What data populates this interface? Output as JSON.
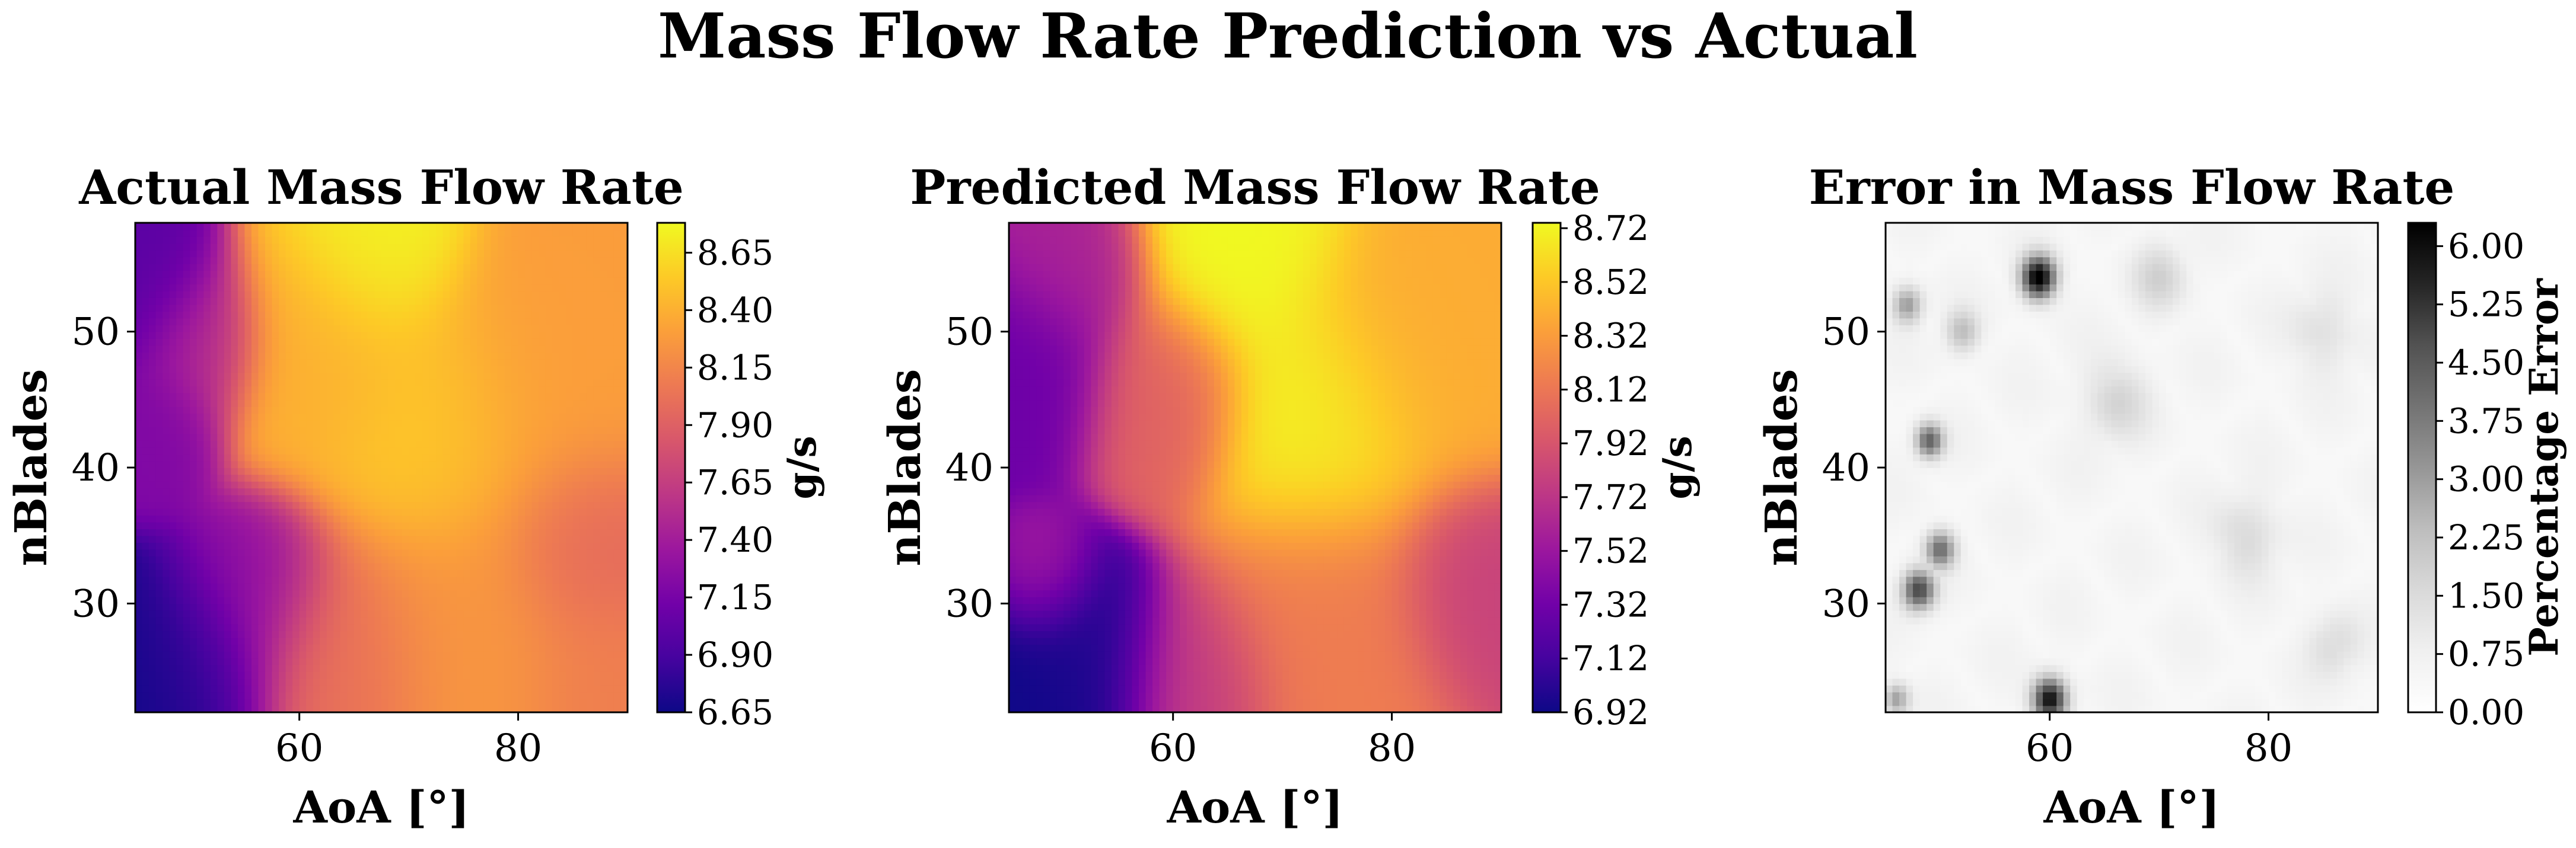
{
  "figure": {
    "title": "Mass Flow Rate Prediction vs Actual"
  },
  "chart_data": [
    {
      "type": "heatmap",
      "title": "Actual Mass Flow Rate",
      "xlabel": "AoA [°]",
      "ylabel": "nBlades",
      "xlim": [
        45,
        90
      ],
      "ylim": [
        22,
        58
      ],
      "xticks": [
        "60",
        "80"
      ],
      "yticks": [
        "30",
        "40",
        "50"
      ],
      "colormap": "plasma",
      "colorbar": {
        "label": "g/s",
        "range": [
          6.65,
          8.78
        ],
        "ticks": [
          "6.65",
          "6.90",
          "7.15",
          "7.40",
          "7.65",
          "7.90",
          "8.15",
          "8.40",
          "8.65"
        ]
      },
      "hotspots": [
        {
          "x": 46,
          "y": 23,
          "v": 6.65,
          "s": 4.5
        },
        {
          "x": 51,
          "y": 25,
          "v": 6.85,
          "s": 4
        },
        {
          "x": 56,
          "y": 31,
          "v": 7.25,
          "s": 3.5
        },
        {
          "x": 47,
          "y": 43,
          "v": 7.2,
          "s": 3
        },
        {
          "x": 46,
          "y": 53,
          "v": 7.0,
          "s": 3.5
        },
        {
          "x": 51,
          "y": 49,
          "v": 7.5,
          "s": 3
        },
        {
          "x": 62,
          "y": 48,
          "v": 8.4,
          "s": 5
        },
        {
          "x": 67,
          "y": 56,
          "v": 8.75,
          "s": 4
        },
        {
          "x": 72,
          "y": 43,
          "v": 8.55,
          "s": 5
        },
        {
          "x": 82,
          "y": 46,
          "v": 8.3,
          "s": 6
        },
        {
          "x": 86,
          "y": 34,
          "v": 7.95,
          "s": 4
        },
        {
          "x": 76,
          "y": 28,
          "v": 8.25,
          "s": 6
        },
        {
          "x": 63,
          "y": 26,
          "v": 8.0,
          "s": 5
        },
        {
          "x": 88,
          "y": 24,
          "v": 8.1,
          "s": 4
        }
      ]
    },
    {
      "type": "heatmap",
      "title": "Predicted Mass Flow Rate",
      "xlabel": "AoA [°]",
      "ylabel": "nBlades",
      "xlim": [
        45,
        90
      ],
      "ylim": [
        22,
        58
      ],
      "xticks": [
        "60",
        "80"
      ],
      "yticks": [
        "30",
        "40",
        "50"
      ],
      "colormap": "plasma",
      "colorbar": {
        "label": "g/s",
        "range": [
          6.92,
          8.74
        ],
        "ticks": [
          "6.92",
          "7.12",
          "7.32",
          "7.52",
          "7.72",
          "7.92",
          "8.12",
          "8.32",
          "8.52",
          "8.72"
        ]
      },
      "hotspots": [
        {
          "x": 47,
          "y": 23,
          "v": 6.92,
          "s": 5
        },
        {
          "x": 52,
          "y": 26,
          "v": 7.0,
          "s": 4
        },
        {
          "x": 48,
          "y": 32,
          "v": 7.6,
          "s": 2.5
        },
        {
          "x": 47,
          "y": 47,
          "v": 7.3,
          "s": 4
        },
        {
          "x": 51,
          "y": 55,
          "v": 7.6,
          "s": 3.5
        },
        {
          "x": 59,
          "y": 45,
          "v": 8.0,
          "s": 4
        },
        {
          "x": 66,
          "y": 57,
          "v": 8.74,
          "s": 5
        },
        {
          "x": 73,
          "y": 43,
          "v": 8.72,
          "s": 5
        },
        {
          "x": 83,
          "y": 49,
          "v": 8.4,
          "s": 6
        },
        {
          "x": 88,
          "y": 31,
          "v": 7.8,
          "s": 4
        },
        {
          "x": 74,
          "y": 28,
          "v": 8.15,
          "s": 6
        },
        {
          "x": 62,
          "y": 24,
          "v": 7.75,
          "s": 4
        }
      ]
    },
    {
      "type": "heatmap",
      "title": "Error in Mass Flow Rate",
      "xlabel": "AoA [°]",
      "ylabel": "nBlades",
      "xlim": [
        45,
        90
      ],
      "ylim": [
        22,
        58
      ],
      "xticks": [
        "60",
        "80"
      ],
      "yticks": [
        "30",
        "40",
        "50"
      ],
      "colormap": "Greys",
      "colorbar": {
        "label": "Percentage Error",
        "range": [
          0,
          6.3
        ],
        "ticks": [
          "0.00",
          "0.75",
          "1.50",
          "2.25",
          "3.00",
          "3.75",
          "4.50",
          "5.25",
          "6.00"
        ]
      },
      "hotspots": [
        {
          "x": 59,
          "y": 54,
          "v": 6.0,
          "s": 1.6
        },
        {
          "x": 60,
          "y": 23,
          "v": 5.6,
          "s": 1.6
        },
        {
          "x": 48,
          "y": 31,
          "v": 4.5,
          "s": 1.5
        },
        {
          "x": 50,
          "y": 34,
          "v": 3.5,
          "s": 1.4
        },
        {
          "x": 49,
          "y": 42,
          "v": 3.8,
          "s": 1.3
        },
        {
          "x": 47,
          "y": 52,
          "v": 2.6,
          "s": 1.4
        },
        {
          "x": 46,
          "y": 23,
          "v": 2.5,
          "s": 1.2
        },
        {
          "x": 52,
          "y": 50,
          "v": 1.8,
          "s": 1.6
        },
        {
          "x": 66,
          "y": 45,
          "v": 1.2,
          "s": 3
        },
        {
          "x": 78,
          "y": 35,
          "v": 1.1,
          "s": 3
        },
        {
          "x": 86,
          "y": 27,
          "v": 1.0,
          "s": 2.5
        },
        {
          "x": 85,
          "y": 50,
          "v": 0.9,
          "s": 3
        },
        {
          "x": 70,
          "y": 54,
          "v": 1.2,
          "s": 2.5
        }
      ]
    }
  ]
}
